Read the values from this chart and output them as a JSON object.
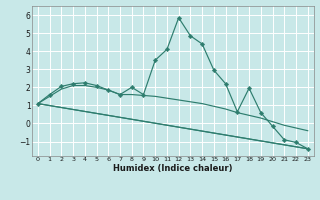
{
  "xlabel": "Humidex (Indice chaleur)",
  "background_color": "#c8e8e8",
  "line_color": "#2e7d6e",
  "grid_color": "#ffffff",
  "xlim": [
    -0.5,
    23.5
  ],
  "ylim": [
    -1.8,
    6.5
  ],
  "xticks": [
    0,
    1,
    2,
    3,
    4,
    5,
    6,
    7,
    8,
    9,
    10,
    11,
    12,
    13,
    14,
    15,
    16,
    17,
    18,
    19,
    20,
    21,
    22,
    23
  ],
  "yticks": [
    -1,
    0,
    1,
    2,
    3,
    4,
    5,
    6
  ],
  "main_x": [
    0,
    1,
    2,
    3,
    4,
    5,
    6,
    7,
    8,
    9,
    10,
    11,
    12,
    13,
    14,
    15,
    16,
    17,
    18,
    19,
    20,
    21,
    22,
    23
  ],
  "main_y": [
    1.1,
    1.6,
    2.05,
    2.2,
    2.25,
    2.1,
    1.85,
    1.6,
    2.0,
    1.6,
    3.5,
    4.1,
    5.85,
    4.85,
    4.4,
    2.95,
    2.2,
    0.65,
    1.95,
    0.6,
    -0.15,
    -0.9,
    -1.05,
    -1.4
  ],
  "line2_x": [
    0,
    1,
    2,
    3,
    4,
    5,
    6,
    7,
    8,
    9,
    10,
    11,
    12,
    13,
    14,
    15,
    16,
    17,
    18,
    19,
    20,
    21,
    22,
    23
  ],
  "line2_y": [
    1.1,
    1.5,
    1.9,
    2.1,
    2.1,
    2.0,
    1.85,
    1.6,
    1.6,
    1.55,
    1.5,
    1.4,
    1.3,
    1.2,
    1.1,
    0.95,
    0.8,
    0.6,
    0.45,
    0.3,
    0.1,
    -0.1,
    -0.25,
    -0.4
  ],
  "line3_x": [
    0,
    23
  ],
  "line3_y": [
    1.1,
    -1.4
  ],
  "line4_x": [
    0,
    23
  ],
  "line4_y": [
    1.1,
    -1.4
  ]
}
